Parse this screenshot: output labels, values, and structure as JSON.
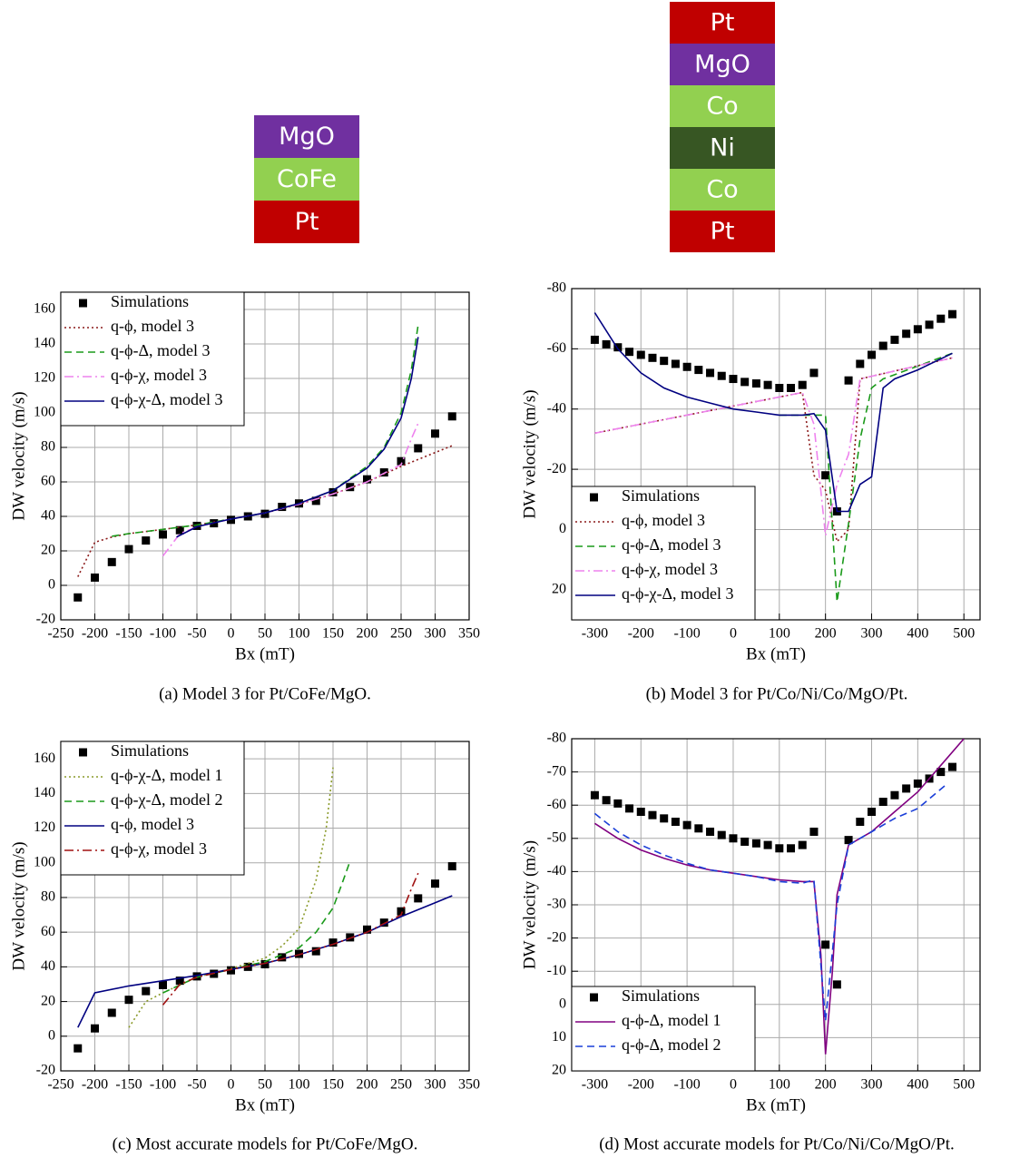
{
  "stacks": [
    {
      "layers": [
        {
          "label": "MgO",
          "color": "#7030a0"
        },
        {
          "label": "CoFe",
          "color": "#92d050"
        },
        {
          "label": "Pt",
          "color": "#c00000"
        }
      ]
    },
    {
      "layers": [
        {
          "label": "Pt",
          "color": "#c00000"
        },
        {
          "label": "MgO",
          "color": "#7030a0"
        },
        {
          "label": "Co",
          "color": "#92d050"
        },
        {
          "label": "Ni",
          "color": "#375623"
        },
        {
          "label": "Co",
          "color": "#92d050"
        },
        {
          "label": "Pt",
          "color": "#c00000"
        }
      ]
    }
  ],
  "chart_data": [
    {
      "type": "line",
      "caption": "(a) Model 3 for Pt/CoFe/MgO.",
      "x_label": "Bx (mT)",
      "y_label": "DW velocity (m/s)",
      "xlim": [
        -250,
        350
      ],
      "xticks": [
        -250,
        -200,
        -150,
        -100,
        -50,
        0,
        50,
        100,
        150,
        200,
        250,
        300,
        350
      ],
      "ylim": [
        -20,
        170
      ],
      "yticks": [
        -20,
        0,
        20,
        40,
        60,
        80,
        100,
        120,
        140,
        160
      ],
      "y_inverted": false,
      "grid": true,
      "legend": "top-left",
      "series": [
        {
          "name": "Simulations",
          "color": "#000000",
          "style": "markers",
          "x": [
            -225,
            -200,
            -175,
            -150,
            -125,
            -100,
            -75,
            -50,
            -25,
            0,
            25,
            50,
            75,
            100,
            125,
            150,
            175,
            200,
            225,
            250,
            275,
            300,
            325
          ],
          "values": [
            -7,
            4.5,
            13.5,
            21,
            26,
            29.5,
            32,
            34.5,
            36,
            38,
            40,
            41.5,
            45.5,
            47.5,
            49,
            54,
            57,
            61.5,
            65.5,
            72,
            79.5,
            88,
            98
          ]
        },
        {
          "name": "q-ϕ, model 3",
          "color": "#8b1a1a",
          "style": "dotted",
          "x": [
            -225,
            -200,
            -175,
            -150,
            -100,
            -50,
            0,
            50,
            100,
            150,
            200,
            250,
            300,
            325
          ],
          "values": [
            5,
            25,
            28,
            30,
            32.5,
            35,
            38.5,
            42,
            47,
            53,
            60,
            69,
            77,
            81
          ]
        },
        {
          "name": "q-ϕ-Δ, model 3",
          "color": "#1a9a1a",
          "style": "dashed",
          "x": [
            -175,
            -150,
            -100,
            -50,
            0,
            50,
            100,
            150,
            200,
            225,
            250,
            265,
            275
          ],
          "values": [
            28.5,
            30,
            32.5,
            35,
            38.5,
            42,
            47.5,
            55,
            69,
            80,
            100,
            125,
            151
          ]
        },
        {
          "name": "q-ϕ-χ, model 3",
          "color": "#ee82ee",
          "style": "dashdot",
          "x": [
            -100,
            -75,
            -50,
            0,
            50,
            100,
            150,
            200,
            250,
            265,
            275
          ],
          "values": [
            17,
            30,
            34,
            38.5,
            42,
            47,
            53,
            60,
            70,
            85,
            94
          ]
        },
        {
          "name": "q-ϕ-χ-Δ, model 3",
          "color": "#000080",
          "style": "solid",
          "x": [
            -80,
            -50,
            0,
            50,
            100,
            150,
            200,
            225,
            250,
            265,
            275
          ],
          "values": [
            28,
            34,
            38.5,
            42,
            47.5,
            55,
            68,
            79,
            97,
            120,
            144
          ]
        }
      ]
    },
    {
      "type": "line",
      "caption": "(b) Model 3 for Pt/Co/Ni/Co/MgO/Pt.",
      "x_label": "Bx (mT)",
      "y_label": "DW velocity (m/s)",
      "xlim": [
        -350,
        535
      ],
      "xticks": [
        -300,
        -200,
        -100,
        0,
        100,
        200,
        300,
        400,
        500
      ],
      "ylim": [
        -80,
        30
      ],
      "yticks": [
        -80,
        -60,
        -40,
        -20,
        0,
        20
      ],
      "y_inverted": true,
      "grid": true,
      "legend": "bottom-left",
      "series": [
        {
          "name": "Simulations",
          "color": "#000000",
          "style": "markers",
          "x": [
            -300,
            -275,
            -250,
            -225,
            -200,
            -175,
            -150,
            -125,
            -100,
            -75,
            -50,
            -25,
            0,
            25,
            50,
            75,
            100,
            125,
            150,
            175,
            200,
            225,
            250,
            275,
            300,
            325,
            350,
            375,
            400,
            425,
            450,
            475
          ],
          "values": [
            -63,
            -61.5,
            -60.5,
            -59,
            -58,
            -57,
            -56,
            -55,
            -54,
            -53,
            -52,
            -51,
            -50,
            -49,
            -48.5,
            -48,
            -47,
            -47,
            -48,
            -52,
            -18,
            -6,
            -49.5,
            -55,
            -58,
            -61,
            -63,
            -65,
            -66.5,
            -68,
            -70,
            -71.5
          ]
        },
        {
          "name": "q-ϕ, model 3",
          "color": "#8b1a1a",
          "style": "dotted",
          "x": [
            -300,
            150,
            175,
            200,
            225,
            250,
            275,
            475
          ],
          "values": [
            -32,
            -45.5,
            -18,
            -13,
            4,
            0,
            -50,
            -57
          ]
        },
        {
          "name": "q-ϕ-Δ, model 3",
          "color": "#1a9a1a",
          "style": "dashed",
          "x": [
            100,
            150,
            200,
            225,
            250,
            275,
            300,
            325,
            475
          ],
          "values": [
            -38,
            -38,
            -38,
            24,
            -2,
            -30,
            -47,
            -50,
            -58.5
          ]
        },
        {
          "name": "q-ϕ-χ, model 3",
          "color": "#ee82ee",
          "style": "dashdot",
          "x": [
            -300,
            150,
            175,
            200,
            225,
            250,
            275,
            475
          ],
          "values": [
            -32,
            -45.5,
            -35,
            2,
            -15,
            -25,
            -50,
            -57
          ]
        },
        {
          "name": "q-ϕ-χ-Δ, model 3",
          "color": "#000080",
          "style": "solid",
          "x": [
            -300,
            -250,
            -200,
            -150,
            -100,
            -50,
            0,
            50,
            100,
            150,
            175,
            200,
            225,
            250,
            275,
            300,
            325,
            350,
            400,
            475
          ],
          "values": [
            -72,
            -60,
            -52,
            -47,
            -44,
            -42,
            -40,
            -39,
            -38,
            -38,
            -38.5,
            -33,
            -6,
            -6,
            -15,
            -17.5,
            -47,
            -50,
            -53,
            -58.5
          ]
        }
      ]
    },
    {
      "type": "line",
      "caption": "(c) Most accurate models for Pt/CoFe/MgO.",
      "x_label": "Bx (mT)",
      "y_label": "DW velocity (m/s)",
      "xlim": [
        -250,
        350
      ],
      "xticks": [
        -250,
        -200,
        -150,
        -100,
        -50,
        0,
        50,
        100,
        150,
        200,
        250,
        300,
        350
      ],
      "ylim": [
        -20,
        170
      ],
      "yticks": [
        -20,
        0,
        20,
        40,
        60,
        80,
        100,
        120,
        140,
        160
      ],
      "y_inverted": false,
      "grid": true,
      "legend": "top-left",
      "series": [
        {
          "name": "Simulations",
          "color": "#000000",
          "style": "markers",
          "x": [
            -225,
            -200,
            -175,
            -150,
            -125,
            -100,
            -75,
            -50,
            -25,
            0,
            25,
            50,
            75,
            100,
            125,
            150,
            175,
            200,
            225,
            250,
            275,
            300,
            325
          ],
          "values": [
            -7,
            4.5,
            13.5,
            21,
            26,
            29.5,
            32,
            34.5,
            36,
            38,
            40,
            41.5,
            45.5,
            47.5,
            49,
            54,
            57,
            61.5,
            65.5,
            72,
            79.5,
            88,
            98
          ]
        },
        {
          "name": "q-ϕ-χ-Δ, model 1",
          "color": "#8a9a2a",
          "style": "dotted",
          "x": [
            -150,
            -125,
            -100,
            -50,
            0,
            50,
            75,
            100,
            125,
            140,
            150
          ],
          "values": [
            5,
            20,
            25,
            34,
            39,
            45,
            52,
            62,
            90,
            120,
            155
          ]
        },
        {
          "name": "q-ϕ-χ-Δ, model 2",
          "color": "#1a9a1a",
          "style": "dashed",
          "x": [
            -100,
            -50,
            0,
            50,
            100,
            125,
            150,
            165,
            175
          ],
          "values": [
            25,
            34,
            38.5,
            43,
            51,
            60,
            74,
            90,
            101
          ]
        },
        {
          "name": "q-ϕ, model 3",
          "color": "#000080",
          "style": "solid",
          "x": [
            -225,
            -200,
            -150,
            -100,
            -50,
            0,
            50,
            100,
            150,
            200,
            250,
            300,
            325
          ],
          "values": [
            5,
            25,
            29,
            32,
            35,
            38.5,
            42,
            47,
            53,
            60,
            69,
            77,
            81
          ]
        },
        {
          "name": "q-ϕ-χ, model 3",
          "color": "#a01010",
          "style": "dashdot",
          "x": [
            -100,
            -75,
            -50,
            0,
            50,
            100,
            150,
            200,
            250,
            265,
            275
          ],
          "values": [
            18,
            30,
            34,
            38.5,
            42,
            47,
            53,
            60,
            70,
            85,
            94
          ]
        }
      ]
    },
    {
      "type": "line",
      "caption": "(d) Most accurate models for Pt/Co/Ni/Co/MgO/Pt.",
      "x_label": "Bx (mT)",
      "y_label": "DW velocity (m/s)",
      "xlim": [
        -350,
        535
      ],
      "xticks": [
        -300,
        -200,
        -100,
        0,
        100,
        200,
        300,
        400,
        500
      ],
      "ylim": [
        -80,
        20
      ],
      "yticks": [
        -80,
        -70,
        -60,
        -50,
        -40,
        -30,
        -20,
        -10,
        0,
        10,
        20
      ],
      "y_inverted": true,
      "grid": true,
      "legend": "bottom-left",
      "series": [
        {
          "name": "Simulations",
          "color": "#000000",
          "style": "markers",
          "x": [
            -300,
            -275,
            -250,
            -225,
            -200,
            -175,
            -150,
            -125,
            -100,
            -75,
            -50,
            -25,
            0,
            25,
            50,
            75,
            100,
            125,
            150,
            175,
            200,
            225,
            250,
            275,
            300,
            325,
            350,
            375,
            400,
            425,
            450,
            475
          ],
          "values": [
            -63,
            -61.5,
            -60.5,
            -59,
            -58,
            -57,
            -56,
            -55,
            -54,
            -53,
            -52,
            -51,
            -50,
            -49,
            -48.5,
            -48,
            -47,
            -47,
            -48,
            -52,
            -18,
            -6,
            -49.5,
            -55,
            -58,
            -61,
            -63,
            -65,
            -66.5,
            -68,
            -70,
            -71.5
          ]
        },
        {
          "name": "q-ϕ-Δ, model 1",
          "color": "#800080",
          "style": "solid",
          "x": [
            -300,
            -250,
            -200,
            -150,
            -100,
            -50,
            0,
            50,
            100,
            150,
            175,
            190,
            200,
            215,
            225,
            250,
            300,
            350,
            400,
            450,
            500
          ],
          "values": [
            -54.5,
            -50,
            -46.5,
            -44,
            -42,
            -40.5,
            -39.5,
            -38.5,
            -37.5,
            -37,
            -37,
            -15,
            15,
            -10,
            -33,
            -48,
            -52,
            -58,
            -64,
            -72,
            -80
          ]
        },
        {
          "name": "q-ϕ-Δ, model 2",
          "color": "#1a3ed8",
          "style": "dashed",
          "x": [
            -300,
            -250,
            -200,
            -150,
            -100,
            -50,
            0,
            50,
            100,
            150,
            175,
            200,
            225,
            250,
            300,
            350,
            400,
            460
          ],
          "values": [
            -57.5,
            -52,
            -48,
            -45,
            -42.5,
            -40.5,
            -39.5,
            -38.5,
            -37,
            -36.5,
            -37.5,
            5,
            -30,
            -48,
            -52,
            -56,
            -59,
            -66
          ]
        }
      ]
    }
  ]
}
